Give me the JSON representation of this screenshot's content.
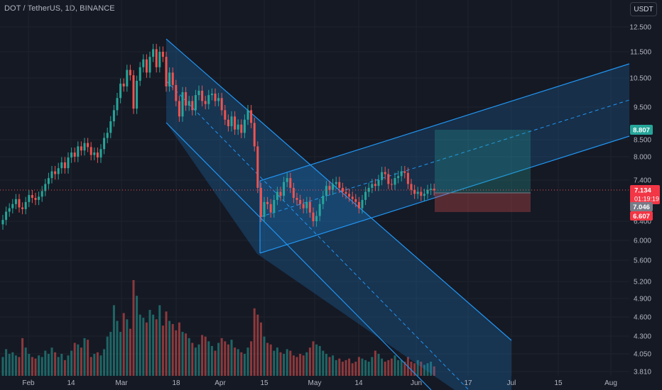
{
  "header": {
    "title": "DOT / TetherUS, 1D, BINANCE",
    "currency": "USDT"
  },
  "price_axis": {
    "ticks": [
      "12.500",
      "11.500",
      "10.500",
      "9.500",
      "8.500",
      "8.000",
      "7.400",
      "6.400",
      "6.000",
      "5.600",
      "5.200",
      "4.900",
      "4.600",
      "4.300",
      "4.050",
      "3.810"
    ]
  },
  "badges": {
    "target": "8.807",
    "current_price": "7.134",
    "countdown": "01:19:19",
    "entry": "7.046",
    "stop": "6.607"
  },
  "time_axis": {
    "labels": [
      "Feb",
      "14",
      "Mar",
      "18",
      "Apr",
      "15",
      "May",
      "14",
      "Jun",
      "17",
      "Jul",
      "15",
      "Aug"
    ]
  },
  "colors": {
    "background": "#151924",
    "up": "#26a69a",
    "down": "#ef5350",
    "channel": "#2196f3",
    "target_zone": "#26a69a",
    "stop_zone": "#ef5350",
    "target_badge": "#26a69a",
    "price_badge": "#f23645",
    "entry_badge": "#787b86"
  },
  "chart_data": {
    "type": "candlestick",
    "symbol": "DOT / TetherUS",
    "interval": "1D",
    "exchange": "BINANCE",
    "y_scale": "log",
    "ylim": [
      3.75,
      13.2
    ],
    "dates": [
      "2024-01-25",
      "2024-01-26",
      "2024-01-27",
      "2024-01-28",
      "2024-01-29",
      "2024-01-30",
      "2024-01-31",
      "2024-02-01",
      "2024-02-02",
      "2024-02-03",
      "2024-02-04",
      "2024-02-05",
      "2024-02-06",
      "2024-02-07",
      "2024-02-08",
      "2024-02-09",
      "2024-02-10",
      "2024-02-11",
      "2024-02-12",
      "2024-02-13",
      "2024-02-14",
      "2024-02-15",
      "2024-02-16",
      "2024-02-17",
      "2024-02-18",
      "2024-02-19",
      "2024-02-20",
      "2024-02-21",
      "2024-02-22",
      "2024-02-23",
      "2024-02-24",
      "2024-02-25",
      "2024-02-26",
      "2024-02-27",
      "2024-02-28",
      "2024-02-29",
      "2024-03-01",
      "2024-03-02",
      "2024-03-03",
      "2024-03-04",
      "2024-03-05",
      "2024-03-06",
      "2024-03-07",
      "2024-03-08",
      "2024-03-09",
      "2024-03-10",
      "2024-03-11",
      "2024-03-12",
      "2024-03-13",
      "2024-03-14",
      "2024-03-15",
      "2024-03-16",
      "2024-03-17",
      "2024-03-18",
      "2024-03-19",
      "2024-03-20",
      "2024-03-21",
      "2024-03-22",
      "2024-03-23",
      "2024-03-24",
      "2024-03-25",
      "2024-03-26",
      "2024-03-27",
      "2024-03-28",
      "2024-03-29",
      "2024-03-30",
      "2024-03-31",
      "2024-04-01",
      "2024-04-02",
      "2024-04-03",
      "2024-04-04",
      "2024-04-05",
      "2024-04-06",
      "2024-04-07",
      "2024-04-08",
      "2024-04-09",
      "2024-04-10",
      "2024-04-11",
      "2024-04-12",
      "2024-04-13",
      "2024-04-14",
      "2024-04-15",
      "2024-04-16",
      "2024-04-17",
      "2024-04-18",
      "2024-04-19",
      "2024-04-20",
      "2024-04-21",
      "2024-04-22",
      "2024-04-23",
      "2024-04-24",
      "2024-04-25",
      "2024-04-26",
      "2024-04-27",
      "2024-04-28",
      "2024-04-29",
      "2024-04-30",
      "2024-05-01",
      "2024-05-02",
      "2024-05-03",
      "2024-05-04",
      "2024-05-05",
      "2024-05-06",
      "2024-05-07",
      "2024-05-08",
      "2024-05-09",
      "2024-05-10",
      "2024-05-11",
      "2024-05-12",
      "2024-05-13",
      "2024-05-14",
      "2024-05-15",
      "2024-05-16",
      "2024-05-17",
      "2024-05-18",
      "2024-05-19",
      "2024-05-20",
      "2024-05-21",
      "2024-05-22",
      "2024-05-23",
      "2024-05-24",
      "2024-05-25",
      "2024-05-26",
      "2024-05-27",
      "2024-05-28",
      "2024-05-29",
      "2024-05-30",
      "2024-05-31",
      "2024-06-01",
      "2024-06-02",
      "2024-06-03",
      "2024-06-04",
      "2024-06-05"
    ],
    "close": [
      6.43,
      6.62,
      6.7,
      6.8,
      6.92,
      6.72,
      6.68,
      6.85,
      7.02,
      6.95,
      6.9,
      6.98,
      7.12,
      7.3,
      7.45,
      7.62,
      7.55,
      7.7,
      7.85,
      7.7,
      7.98,
      8.12,
      8.0,
      8.3,
      8.18,
      8.4,
      8.28,
      8.05,
      8.12,
      7.98,
      8.22,
      8.55,
      8.7,
      9.05,
      9.4,
      9.8,
      10.3,
      10.2,
      10.8,
      10.6,
      9.45,
      10.4,
      10.9,
      11.2,
      10.7,
      11.3,
      11.6,
      10.9,
      11.5,
      11.3,
      10.2,
      10.7,
      10.25,
      9.7,
      9.2,
      10.0,
      9.55,
      9.7,
      9.4,
      9.9,
      10.05,
      9.7,
      9.6,
      9.9,
      9.95,
      9.7,
      9.8,
      9.4,
      9.1,
      8.9,
      9.2,
      8.8,
      8.95,
      8.7,
      9.1,
      9.4,
      9.0,
      8.3,
      7.2,
      6.5,
      6.85,
      6.8,
      6.6,
      6.9,
      7.1,
      7.0,
      7.35,
      7.45,
      7.2,
      6.95,
      6.9,
      6.8,
      6.7,
      6.85,
      6.6,
      6.4,
      6.52,
      6.8,
      7.0,
      7.25,
      7.15,
      7.3,
      7.35,
      7.2,
      7.1,
      7.05,
      6.98,
      6.92,
      6.85,
      6.7,
      6.9,
      7.1,
      7.2,
      7.3,
      7.25,
      7.4,
      7.6,
      7.55,
      7.3,
      7.28,
      7.45,
      7.5,
      7.62,
      7.58,
      7.3,
      7.15,
      7.05,
      7.1,
      7.0,
      7.05,
      7.15,
      7.18,
      7.134
    ],
    "volume": [
      1.2,
      1.7,
      1.4,
      1.5,
      1.3,
      1.2,
      2.4,
      1.8,
      1.4,
      1.2,
      1.1,
      1.3,
      1.2,
      1.6,
      1.4,
      1.8,
      1.5,
      1.2,
      1.4,
      1.0,
      1.3,
      1.6,
      2.1,
      2.0,
      1.8,
      2.4,
      2.3,
      1.2,
      1.4,
      1.5,
      1.3,
      1.7,
      2.5,
      2.8,
      4.5,
      3.5,
      2.8,
      4.0,
      3.6,
      3.0,
      6.1,
      5.1,
      3.9,
      3.7,
      3.4,
      4.2,
      3.9,
      3.6,
      4.5,
      3.2,
      4.1,
      3.5,
      3.3,
      2.9,
      3.4,
      2.8,
      2.7,
      2.4,
      2.1,
      1.8,
      2.0,
      2.6,
      2.5,
      2.2,
      1.9,
      1.6,
      2.1,
      2.4,
      2.2,
      2.0,
      2.3,
      1.8,
      1.7,
      1.5,
      1.4,
      1.8,
      2.2,
      4.3,
      3.9,
      3.4,
      2.5,
      2.1,
      2.0,
      1.6,
      1.8,
      1.5,
      1.4,
      1.7,
      1.6,
      1.3,
      1.2,
      1.4,
      1.3,
      1.5,
      1.8,
      2.2,
      2.0,
      1.9,
      1.6,
      1.4,
      1.2,
      1.3,
      1.0,
      1.1,
      0.9,
      1.0,
      1.1,
      0.8,
      0.9,
      1.2,
      1.1,
      1.0,
      0.9,
      1.2,
      1.6,
      1.4,
      1.1,
      0.9,
      1.0,
      1.1,
      1.3,
      1.0,
      1.0,
      0.9,
      1.2,
      0.9,
      0.8,
      1.0,
      0.9,
      0.7,
      0.8,
      0.9,
      0.6
    ]
  }
}
